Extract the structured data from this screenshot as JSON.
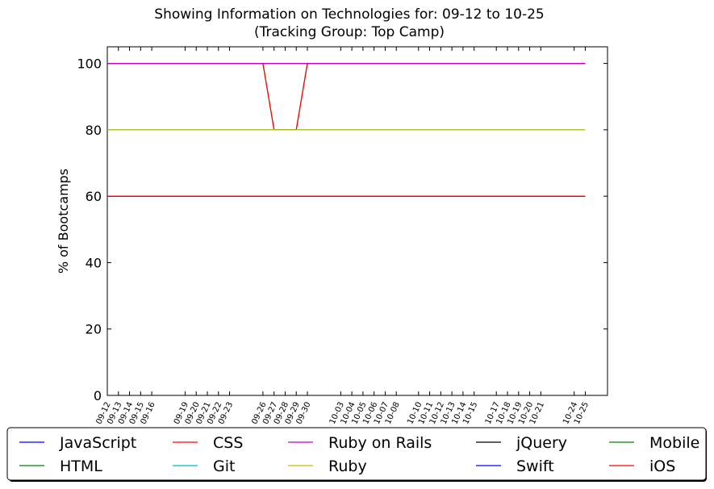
{
  "chart_data": {
    "type": "line",
    "title": "Showing Information on Technologies for: 09-12 to 10-25",
    "subtitle": "(Tracking Group: Top Camp)",
    "xlabel": "",
    "ylabel": "% of Bootcamps",
    "ylim": [
      0,
      105
    ],
    "yticks": [
      0,
      20,
      40,
      60,
      80,
      100
    ],
    "grid": false,
    "legend_placement": "bottom",
    "categories": [
      "09-12",
      "09-13",
      "09-14",
      "09-15",
      "09-16",
      "09-19",
      "09-20",
      "09-21",
      "09-22",
      "09-23",
      "09-26",
      "09-27",
      "09-28",
      "09-29",
      "09-30",
      "10-03",
      "10-04",
      "10-05",
      "10-06",
      "10-07",
      "10-08",
      "10-10",
      "10-11",
      "10-12",
      "10-13",
      "10-14",
      "10-15",
      "10-17",
      "10-18",
      "10-19",
      "10-20",
      "10-21",
      "10-24",
      "10-25"
    ],
    "series": [
      {
        "name": "JavaScript",
        "color": "#0000ff",
        "values": [
          100,
          100,
          100,
          100,
          100,
          100,
          100,
          100,
          100,
          100,
          100,
          100,
          100,
          100,
          100,
          100,
          100,
          100,
          100,
          100,
          100,
          100,
          100,
          100,
          100,
          100,
          100,
          100,
          100,
          100,
          100,
          100,
          100,
          100
        ]
      },
      {
        "name": "HTML",
        "color": "#008000",
        "values": [
          100,
          100,
          100,
          100,
          100,
          100,
          100,
          100,
          100,
          100,
          100,
          80,
          80,
          80,
          100,
          100,
          100,
          100,
          100,
          100,
          100,
          100,
          100,
          100,
          100,
          100,
          100,
          100,
          100,
          100,
          100,
          100,
          100,
          100
        ]
      },
      {
        "name": "CSS",
        "color": "#ff0000",
        "values": [
          100,
          100,
          100,
          100,
          100,
          100,
          100,
          100,
          100,
          100,
          100,
          80,
          80,
          80,
          100,
          100,
          100,
          100,
          100,
          100,
          100,
          100,
          100,
          100,
          100,
          100,
          100,
          100,
          100,
          100,
          100,
          100,
          100,
          100
        ]
      },
      {
        "name": "Git",
        "color": "#00bfbf",
        "values": [
          80,
          80,
          80,
          80,
          80,
          80,
          80,
          80,
          80,
          80,
          80,
          80,
          80,
          80,
          80,
          80,
          80,
          80,
          80,
          80,
          80,
          80,
          80,
          80,
          80,
          80,
          80,
          80,
          80,
          80,
          80,
          80,
          80,
          80
        ]
      },
      {
        "name": "Ruby on Rails",
        "color": "#bf00bf",
        "values": [
          100,
          100,
          100,
          100,
          100,
          100,
          100,
          100,
          100,
          100,
          100,
          100,
          100,
          100,
          100,
          100,
          100,
          100,
          100,
          100,
          100,
          100,
          100,
          100,
          100,
          100,
          100,
          100,
          100,
          100,
          100,
          100,
          100,
          100
        ]
      },
      {
        "name": "Ruby",
        "color": "#bfbf00",
        "values": [
          80,
          80,
          80,
          80,
          80,
          80,
          80,
          80,
          80,
          80,
          80,
          80,
          80,
          80,
          80,
          80,
          80,
          80,
          80,
          80,
          80,
          80,
          80,
          80,
          80,
          80,
          80,
          80,
          80,
          80,
          80,
          80,
          80,
          80
        ]
      },
      {
        "name": "jQuery",
        "color": "#000000",
        "values": [
          60,
          60,
          60,
          60,
          60,
          60,
          60,
          60,
          60,
          60,
          60,
          60,
          60,
          60,
          60,
          60,
          60,
          60,
          60,
          60,
          60,
          60,
          60,
          60,
          60,
          60,
          60,
          60,
          60,
          60,
          60,
          60,
          60,
          60
        ]
      },
      {
        "name": "Swift",
        "color": "#0000ff",
        "values": [
          60,
          60,
          60,
          60,
          60,
          60,
          60,
          60,
          60,
          60,
          60,
          60,
          60,
          60,
          60,
          60,
          60,
          60,
          60,
          60,
          60,
          60,
          60,
          60,
          60,
          60,
          60,
          60,
          60,
          60,
          60,
          60,
          60,
          60
        ]
      },
      {
        "name": "Mobile",
        "color": "#008000",
        "values": [
          60,
          60,
          60,
          60,
          60,
          60,
          60,
          60,
          60,
          60,
          60,
          60,
          60,
          60,
          60,
          60,
          60,
          60,
          60,
          60,
          60,
          60,
          60,
          60,
          60,
          60,
          60,
          60,
          60,
          60,
          60,
          60,
          60,
          60
        ]
      },
      {
        "name": "iOS",
        "color": "#ff0000",
        "values": [
          60,
          60,
          60,
          60,
          60,
          60,
          60,
          60,
          60,
          60,
          60,
          60,
          60,
          60,
          60,
          60,
          60,
          60,
          60,
          60,
          60,
          60,
          60,
          60,
          60,
          60,
          60,
          60,
          60,
          60,
          60,
          60,
          60,
          60
        ]
      }
    ]
  }
}
